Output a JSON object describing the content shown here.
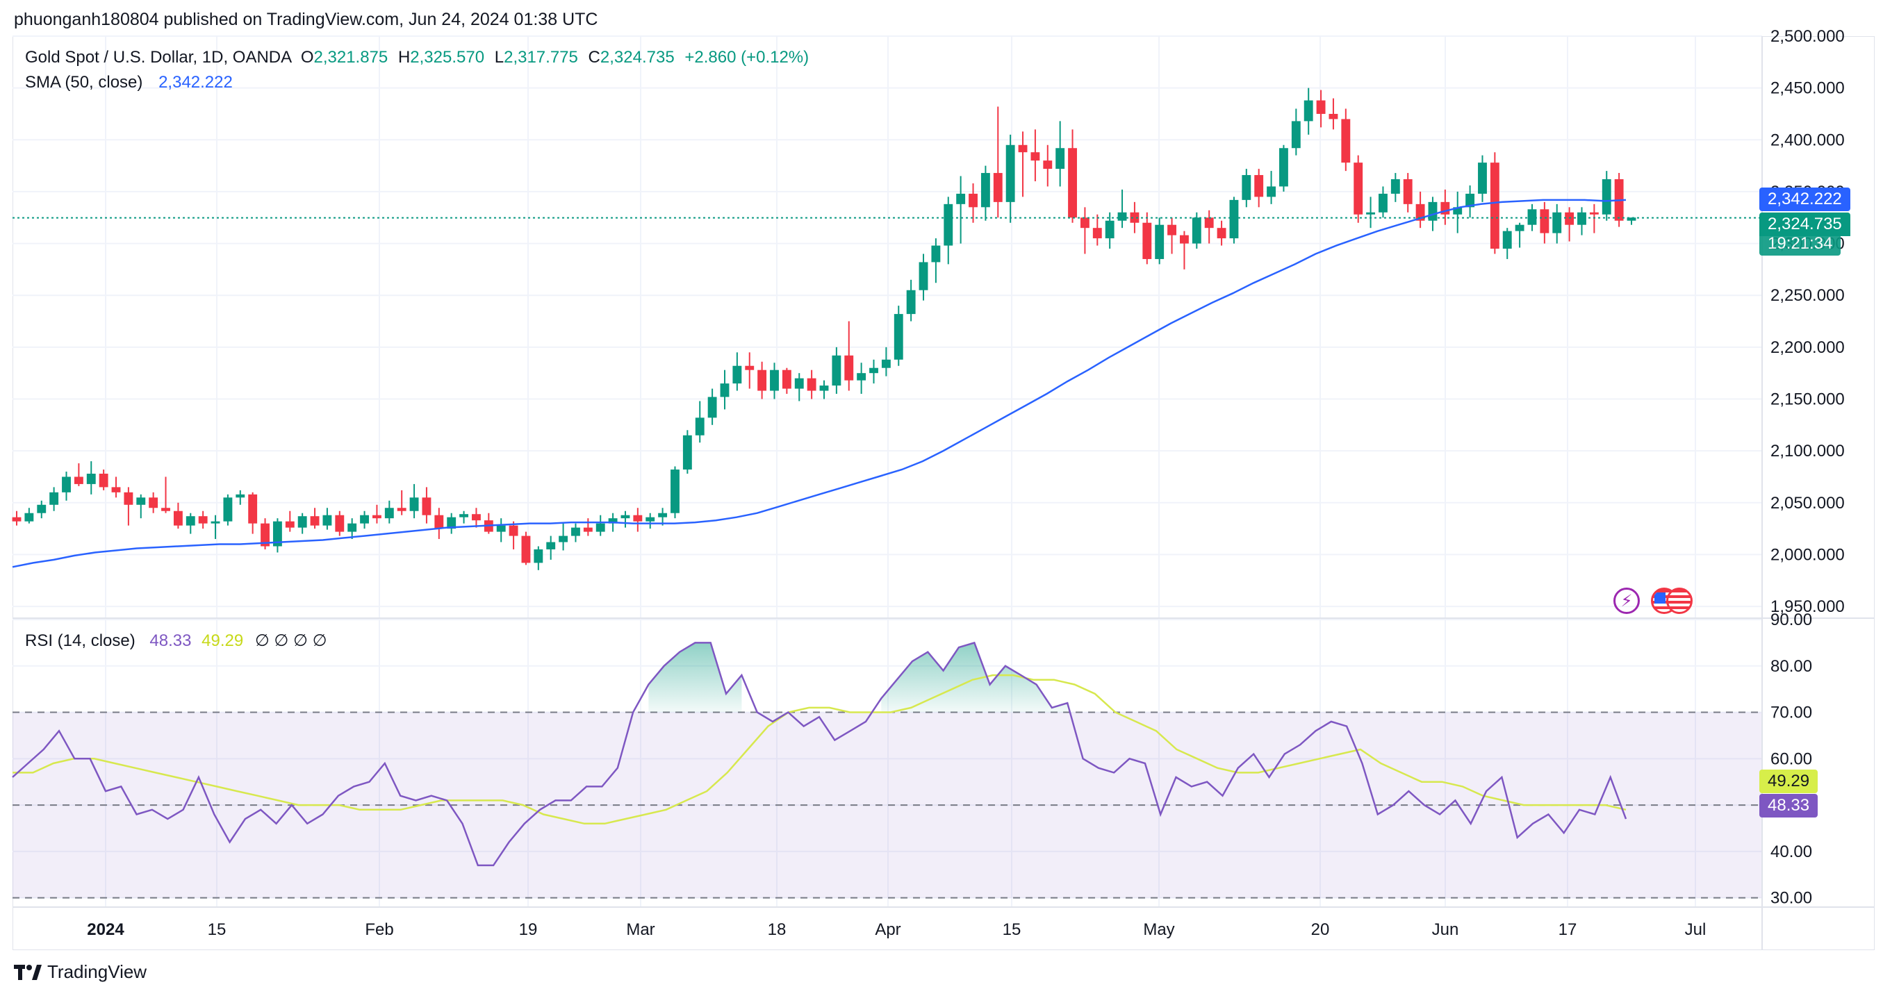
{
  "publish_line": "phuonganh180804 published on TradingView.com, Jun 24, 2024 01:38 UTC",
  "footer": {
    "brand": "TradingView"
  },
  "main_legend": {
    "symbol": "Gold Spot / U.S. Dollar, 1D, OANDA",
    "o_label": "O",
    "o_value": "2,321.875",
    "h_label": "H",
    "h_value": "2,325.570",
    "l_label": "L",
    "l_value": "2,317.775",
    "c_label": "C",
    "c_value": "2,324.735",
    "change": "+2.860 (+0.12%)"
  },
  "sma_legend": {
    "label": "SMA (50, close)",
    "value": "2,342.222"
  },
  "rsi_legend": {
    "label": "RSI (14, close)",
    "value": "48.33",
    "ma_value": "49.29",
    "na": "∅ ∅ ∅ ∅"
  },
  "tags": {
    "sma": "2,342.222",
    "price": "2,324.735",
    "countdown": "19:21:34",
    "rsi_ma": "49.29",
    "rsi": "48.33"
  },
  "colors": {
    "up": "#089981",
    "down": "#f23645",
    "sma": "#2962ff",
    "rsi": "#7e57c2",
    "rsi_ma": "#c7d919",
    "band": "#7e57c2"
  },
  "icons": [
    "lightning-icon",
    "us-flag-icon"
  ],
  "chart_data": [
    {
      "type": "candlestick",
      "title": "Gold Spot / U.S. Dollar, 1D, OANDA",
      "ylim": [
        1940,
        2500
      ],
      "y_ticks": [
        "2,500.000",
        "2,450.000",
        "2,400.000",
        "2,350.000",
        "2,300.000",
        "2,250.000",
        "2,200.000",
        "2,150.000",
        "2,100.000",
        "2,050.000",
        "2,000.000",
        "1,950.000"
      ],
      "x_ticks": [
        "2024",
        "15",
        "Feb",
        "19",
        "Mar",
        "18",
        "Apr",
        "15",
        "May",
        "20",
        "Jun",
        "17",
        "Jul"
      ],
      "current_price": 2324.735,
      "candles_ohlc": [
        [
          2036,
          2042,
          2028,
          2032
        ],
        [
          2032,
          2045,
          2030,
          2040
        ],
        [
          2040,
          2052,
          2035,
          2048
        ],
        [
          2048,
          2065,
          2042,
          2060
        ],
        [
          2060,
          2080,
          2052,
          2075
        ],
        [
          2075,
          2088,
          2066,
          2068
        ],
        [
          2068,
          2090,
          2058,
          2078
        ],
        [
          2078,
          2082,
          2062,
          2065
        ],
        [
          2065,
          2075,
          2055,
          2060
        ],
        [
          2060,
          2065,
          2028,
          2048
        ],
        [
          2048,
          2058,
          2035,
          2055
        ],
        [
          2055,
          2060,
          2040,
          2045
        ],
        [
          2045,
          2075,
          2040,
          2042
        ],
        [
          2042,
          2050,
          2025,
          2028
        ],
        [
          2028,
          2040,
          2020,
          2037
        ],
        [
          2037,
          2042,
          2025,
          2030
        ],
        [
          2030,
          2038,
          2015,
          2032
        ],
        [
          2032,
          2058,
          2028,
          2055
        ],
        [
          2055,
          2062,
          2048,
          2058
        ],
        [
          2058,
          2060,
          2020,
          2030
        ],
        [
          2030,
          2035,
          2005,
          2008
        ],
        [
          2008,
          2035,
          2002,
          2032
        ],
        [
          2032,
          2042,
          2022,
          2026
        ],
        [
          2026,
          2040,
          2020,
          2037
        ],
        [
          2037,
          2045,
          2025,
          2028
        ],
        [
          2028,
          2045,
          2024,
          2038
        ],
        [
          2038,
          2042,
          2018,
          2022
        ],
        [
          2022,
          2035,
          2015,
          2030
        ],
        [
          2030,
          2042,
          2025,
          2038
        ],
        [
          2038,
          2048,
          2030,
          2035
        ],
        [
          2035,
          2052,
          2030,
          2045
        ],
        [
          2045,
          2062,
          2038,
          2042
        ],
        [
          2042,
          2068,
          2035,
          2055
        ],
        [
          2055,
          2065,
          2030,
          2038
        ],
        [
          2038,
          2045,
          2015,
          2025
        ],
        [
          2025,
          2040,
          2020,
          2036
        ],
        [
          2036,
          2042,
          2030,
          2039
        ],
        [
          2039,
          2045,
          2026,
          2033
        ],
        [
          2033,
          2040,
          2020,
          2022
        ],
        [
          2022,
          2035,
          2012,
          2028
        ],
        [
          2028,
          2032,
          2005,
          2018
        ],
        [
          2018,
          2022,
          1990,
          1992
        ],
        [
          1992,
          2008,
          1985,
          2005
        ],
        [
          2005,
          2018,
          1995,
          2012
        ],
        [
          2012,
          2030,
          2004,
          2018
        ],
        [
          2018,
          2030,
          2012,
          2026
        ],
        [
          2026,
          2035,
          2018,
          2022
        ],
        [
          2022,
          2038,
          2018,
          2030
        ],
        [
          2030,
          2040,
          2022,
          2035
        ],
        [
          2035,
          2042,
          2026,
          2038
        ],
        [
          2038,
          2045,
          2022,
          2032
        ],
        [
          2032,
          2040,
          2025,
          2036
        ],
        [
          2036,
          2045,
          2028,
          2040
        ],
        [
          2040,
          2085,
          2035,
          2082
        ],
        [
          2082,
          2120,
          2078,
          2115
        ],
        [
          2115,
          2148,
          2108,
          2132
        ],
        [
          2132,
          2160,
          2125,
          2152
        ],
        [
          2152,
          2178,
          2140,
          2165
        ],
        [
          2165,
          2195,
          2158,
          2182
        ],
        [
          2182,
          2195,
          2160,
          2178
        ],
        [
          2178,
          2186,
          2150,
          2158
        ],
        [
          2158,
          2185,
          2150,
          2178
        ],
        [
          2178,
          2180,
          2155,
          2160
        ],
        [
          2160,
          2175,
          2148,
          2170
        ],
        [
          2170,
          2178,
          2150,
          2158
        ],
        [
          2158,
          2168,
          2150,
          2163
        ],
        [
          2163,
          2200,
          2155,
          2192
        ],
        [
          2192,
          2225,
          2158,
          2168
        ],
        [
          2168,
          2185,
          2155,
          2175
        ],
        [
          2175,
          2188,
          2165,
          2180
        ],
        [
          2180,
          2200,
          2172,
          2188
        ],
        [
          2188,
          2240,
          2182,
          2232
        ],
        [
          2232,
          2265,
          2225,
          2255
        ],
        [
          2255,
          2290,
          2245,
          2282
        ],
        [
          2282,
          2305,
          2262,
          2298
        ],
        [
          2298,
          2345,
          2280,
          2338
        ],
        [
          2338,
          2365,
          2300,
          2348
        ],
        [
          2348,
          2358,
          2320,
          2335
        ],
        [
          2335,
          2375,
          2322,
          2368
        ],
        [
          2368,
          2432,
          2325,
          2340
        ],
        [
          2340,
          2405,
          2320,
          2395
        ],
        [
          2395,
          2408,
          2345,
          2388
        ],
        [
          2388,
          2410,
          2360,
          2380
        ],
        [
          2380,
          2395,
          2355,
          2372
        ],
        [
          2372,
          2418,
          2355,
          2392
        ],
        [
          2392,
          2410,
          2320,
          2325
        ],
        [
          2325,
          2335,
          2290,
          2315
        ],
        [
          2315,
          2328,
          2298,
          2305
        ],
        [
          2305,
          2330,
          2295,
          2322
        ],
        [
          2322,
          2352,
          2315,
          2330
        ],
        [
          2330,
          2340,
          2310,
          2320
        ],
        [
          2320,
          2330,
          2280,
          2285
        ],
        [
          2285,
          2325,
          2280,
          2318
        ],
        [
          2318,
          2325,
          2290,
          2308
        ],
        [
          2308,
          2312,
          2275,
          2300
        ],
        [
          2300,
          2330,
          2295,
          2325
        ],
        [
          2325,
          2332,
          2300,
          2315
        ],
        [
          2315,
          2322,
          2298,
          2305
        ],
        [
          2305,
          2345,
          2300,
          2342
        ],
        [
          2342,
          2372,
          2335,
          2366
        ],
        [
          2366,
          2372,
          2335,
          2345
        ],
        [
          2345,
          2370,
          2338,
          2355
        ],
        [
          2355,
          2395,
          2350,
          2392
        ],
        [
          2392,
          2430,
          2385,
          2418
        ],
        [
          2418,
          2450,
          2405,
          2438
        ],
        [
          2438,
          2448,
          2412,
          2425
        ],
        [
          2425,
          2440,
          2410,
          2420
        ],
        [
          2420,
          2430,
          2370,
          2378
        ],
        [
          2378,
          2385,
          2320,
          2328
        ],
        [
          2328,
          2345,
          2315,
          2330
        ],
        [
          2330,
          2355,
          2325,
          2348
        ],
        [
          2348,
          2368,
          2340,
          2362
        ],
        [
          2362,
          2368,
          2330,
          2338
        ],
        [
          2338,
          2350,
          2315,
          2322
        ],
        [
          2322,
          2345,
          2312,
          2340
        ],
        [
          2340,
          2352,
          2318,
          2328
        ],
        [
          2328,
          2350,
          2310,
          2335
        ],
        [
          2335,
          2356,
          2325,
          2348
        ],
        [
          2348,
          2385,
          2340,
          2378
        ],
        [
          2378,
          2388,
          2290,
          2295
        ],
        [
          2295,
          2315,
          2285,
          2312
        ],
        [
          2312,
          2320,
          2296,
          2318
        ],
        [
          2318,
          2338,
          2312,
          2333
        ],
        [
          2333,
          2340,
          2300,
          2310
        ],
        [
          2310,
          2338,
          2300,
          2330
        ],
        [
          2330,
          2335,
          2302,
          2318
        ],
        [
          2318,
          2335,
          2308,
          2330
        ],
        [
          2330,
          2338,
          2310,
          2328
        ],
        [
          2328,
          2370,
          2322,
          2362
        ],
        [
          2362,
          2368,
          2316,
          2322
        ],
        [
          2322,
          2325,
          2318,
          2325
        ]
      ],
      "sma50": [
        1988,
        1992,
        1995,
        1999,
        2002,
        2004,
        2006,
        2007,
        2008,
        2009,
        2010,
        2010,
        2011,
        2012,
        2013,
        2014,
        2016,
        2018,
        2020,
        2022,
        2024,
        2026,
        2027,
        2028,
        2029,
        2030,
        2030,
        2031,
        2031,
        2031,
        2030,
        2030,
        2030,
        2031,
        2033,
        2036,
        2040,
        2046,
        2052,
        2058,
        2064,
        2070,
        2076,
        2082,
        2090,
        2100,
        2111,
        2122,
        2133,
        2144,
        2155,
        2167,
        2178,
        2190,
        2201,
        2212,
        2223,
        2233,
        2243,
        2252,
        2262,
        2271,
        2280,
        2290,
        2298,
        2305,
        2312,
        2318,
        2324,
        2330,
        2335,
        2338,
        2340,
        2341,
        2342,
        2342,
        2342,
        2341,
        2342
      ]
    },
    {
      "type": "line",
      "title": "RSI (14, close)",
      "ylim": [
        28,
        90
      ],
      "y_ticks": [
        "90.00",
        "80.00",
        "70.00",
        "60.00",
        "50.00",
        "40.00",
        "30.00"
      ],
      "bands": {
        "upper": 70,
        "middle": 50,
        "lower": 30
      },
      "series": [
        {
          "name": "RSI",
          "values": [
            56,
            59,
            62,
            66,
            60,
            60,
            53,
            54,
            48,
            49,
            47,
            49,
            56,
            48,
            42,
            47,
            49,
            46,
            50,
            46,
            48,
            52,
            54,
            55,
            59,
            52,
            51,
            52,
            51,
            46,
            37,
            37,
            42,
            46,
            49,
            51,
            51,
            54,
            54,
            58,
            70,
            76,
            80,
            83,
            85,
            85,
            74,
            78,
            70,
            68,
            70,
            67,
            69,
            64,
            66,
            68,
            73,
            77,
            81,
            83,
            79,
            84,
            85,
            76,
            80,
            78,
            76,
            71,
            72,
            60,
            58,
            57,
            60,
            59,
            48,
            56,
            54,
            55,
            52,
            58,
            61,
            56,
            61,
            63,
            66,
            68,
            67,
            59,
            48,
            50,
            53,
            50,
            48,
            51,
            46,
            53,
            56,
            43,
            46,
            48,
            44,
            49,
            48,
            56,
            47
          ]
        },
        {
          "name": "MA",
          "values": [
            57,
            57,
            59,
            60,
            60,
            59,
            58,
            57,
            56,
            55,
            54,
            53,
            52,
            51,
            50,
            50,
            50,
            49,
            49,
            49,
            50,
            51,
            51,
            51,
            51,
            50,
            48,
            47,
            46,
            46,
            47,
            48,
            49,
            51,
            53,
            57,
            62,
            67,
            70,
            71,
            71,
            70,
            70,
            70,
            71,
            73,
            75,
            77,
            78,
            78,
            77,
            77,
            76,
            74,
            70,
            68,
            66,
            62,
            60,
            58,
            57,
            57,
            58,
            59,
            60,
            61,
            62,
            59,
            57,
            55,
            55,
            54,
            52,
            51,
            50,
            50,
            50,
            50,
            50,
            49
          ]
        }
      ]
    }
  ]
}
